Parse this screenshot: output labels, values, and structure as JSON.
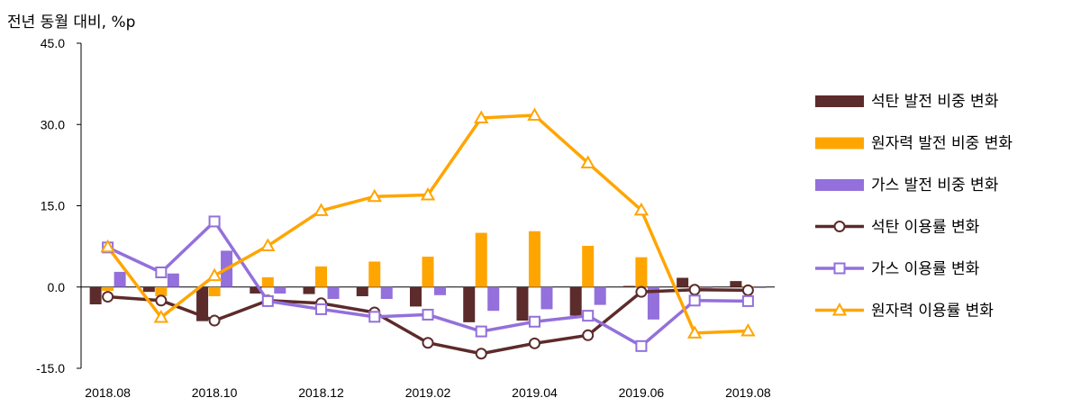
{
  "chart_data": {
    "type": "bar+line",
    "ylabel": "전년 동월 대비, %p",
    "ylim": [
      -15,
      45
    ],
    "yticks": [
      "45.0",
      "30.0",
      "15.0",
      "0.0",
      "-15.0"
    ],
    "ytick_values": [
      45,
      30,
      15,
      0,
      -15
    ],
    "categories": [
      "2018.08",
      "2018.09",
      "2018.10",
      "2018.11",
      "2018.12",
      "2019.01",
      "2019.02",
      "2019.03",
      "2019.04",
      "2019.05",
      "2019.06",
      "2019.07",
      "2019.08"
    ],
    "xtick_labels": [
      "2018.08",
      "",
      "2018.10",
      "",
      "2018.12",
      "",
      "2019.02",
      "",
      "2019.04",
      "",
      "2019.06",
      "",
      "2019.08"
    ],
    "bar_series": [
      {
        "name": "석탄 발전 비중 변화",
        "color": "#5c2b2b",
        "values": [
          -3.2,
          -0.9,
          -6.3,
          -1.2,
          -1.3,
          -1.7,
          -3.6,
          -6.5,
          -6.2,
          -5.3,
          0.2,
          1.7,
          1.1
        ]
      },
      {
        "name": "원자력 발전 비중 변화",
        "color": "#ffa500",
        "values": [
          -0.7,
          -1.7,
          -1.7,
          1.8,
          3.8,
          4.7,
          5.6,
          10.0,
          10.3,
          7.6,
          5.5,
          0.1,
          0.1
        ]
      },
      {
        "name": "가스 발전 비중 변화",
        "color": "#9370db",
        "values": [
          2.8,
          2.5,
          6.7,
          -1.2,
          -2.2,
          -2.2,
          -1.5,
          -4.4,
          -4.1,
          -3.3,
          -6.0,
          -0.2,
          -0.2
        ]
      }
    ],
    "line_series": [
      {
        "name": "석탄 이용률 변화",
        "color": "#5c2b2b",
        "marker": "circle",
        "values": [
          -1.8,
          -2.5,
          -6.2,
          -2.5,
          -3.0,
          -4.7,
          -10.3,
          -12.3,
          -10.4,
          -8.9,
          -0.9,
          -0.5,
          -0.6
        ]
      },
      {
        "name": "가스 이용률 변화",
        "color": "#9370db",
        "marker": "square",
        "values": [
          7.3,
          2.7,
          12.1,
          -2.6,
          -4.1,
          -5.5,
          -5.1,
          -8.2,
          -6.4,
          -5.3,
          -10.9,
          -2.5,
          -2.6
        ]
      },
      {
        "name": "원자력 이용률 변화",
        "color": "#ffa500",
        "marker": "triangle",
        "values": [
          7.4,
          -5.6,
          2.1,
          7.6,
          14.1,
          16.7,
          17.0,
          31.2,
          31.7,
          22.9,
          14.2,
          -8.5,
          -8.1
        ]
      }
    ],
    "legend_position": "right"
  }
}
